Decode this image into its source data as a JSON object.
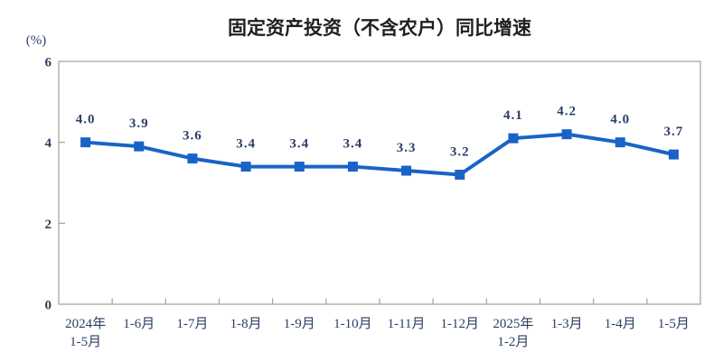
{
  "page": {
    "background": "#ffffff"
  },
  "chart_data": {
    "type": "line",
    "title": "固定资产投资（不含农户）同比增速",
    "unit_label": "(%)",
    "categories": [
      [
        "2024年",
        "1-5月"
      ],
      [
        "1-6月"
      ],
      [
        "1-7月"
      ],
      [
        "1-8月"
      ],
      [
        "1-9月"
      ],
      [
        "1-10月"
      ],
      [
        "1-11月"
      ],
      [
        "1-12月"
      ],
      [
        "2025年",
        "1-2月"
      ],
      [
        "1-3月"
      ],
      [
        "1-4月"
      ],
      [
        "1-5月"
      ]
    ],
    "values": [
      4.0,
      3.9,
      3.6,
      3.4,
      3.4,
      3.4,
      3.3,
      3.2,
      4.1,
      4.2,
      4.0,
      3.7
    ],
    "labels": [
      "4.0",
      "3.9",
      "3.6",
      "3.4",
      "3.4",
      "3.4",
      "3.3",
      "3.2",
      "4.1",
      "4.2",
      "4.0",
      "3.7"
    ],
    "ylim": [
      0,
      6
    ],
    "yticks": [
      0,
      2,
      4,
      6
    ],
    "ytick_labels": [
      "0",
      "2",
      "4",
      "6"
    ],
    "xlabel": "",
    "ylabel": "(%)",
    "grid": false,
    "legend": "none",
    "marker": "square",
    "colors": {
      "line": "#1A63C6",
      "marker": "#1A63C6",
      "labels": "#2C3E66",
      "title": "#1F1F1F",
      "axis": "#A6A6A6"
    }
  }
}
